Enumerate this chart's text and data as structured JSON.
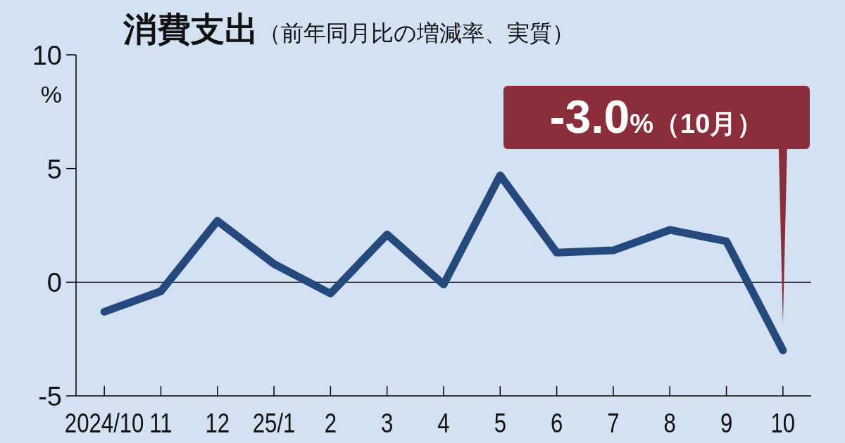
{
  "chart_data": {
    "type": "line",
    "title": "消費支出",
    "subtitle": "（前年同月比の増減率、実質）",
    "ylabel": "%",
    "categories": [
      "2024/10",
      "11",
      "12",
      "25/1",
      "2",
      "3",
      "4",
      "5",
      "6",
      "7",
      "8",
      "9",
      "10"
    ],
    "series": [
      {
        "color": "#24497c",
        "values": [
          -1.3,
          -0.4,
          2.7,
          0.8,
          -0.5,
          2.1,
          -0.1,
          4.7,
          1.3,
          1.4,
          2.3,
          1.8,
          -3.0
        ]
      }
    ],
    "ylim": [
      -5,
      10
    ],
    "yticks": [
      -5,
      0,
      5,
      10
    ],
    "grid": false,
    "marker": "none",
    "line_style": "solid",
    "ref_lines": [
      {
        "axis": "y",
        "value": 0,
        "color": "#000000"
      }
    ],
    "annotations": [
      "-3.0%（10月）"
    ]
  }
}
